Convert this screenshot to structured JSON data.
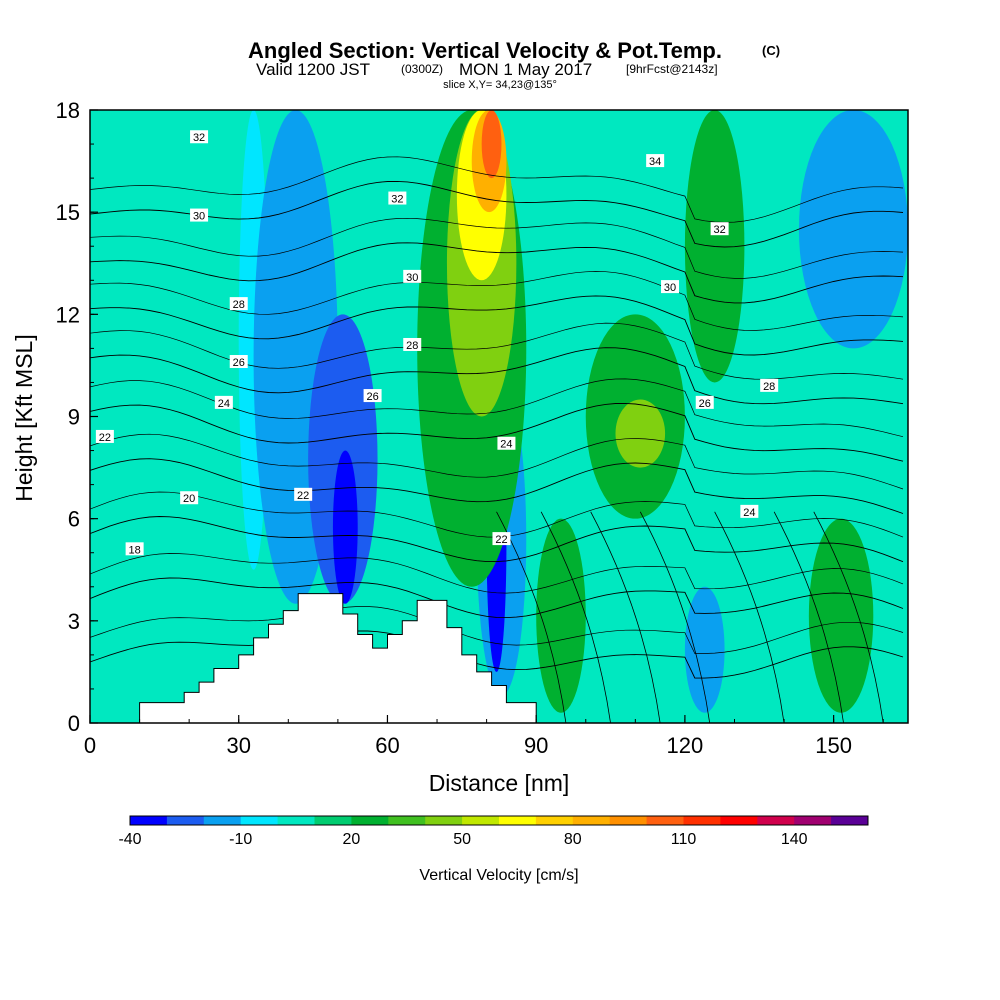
{
  "chart_data": {
    "type": "heatmap",
    "title": "Angled Section: Vertical Velocity & Pot.Temp.",
    "title_tag": "(C)",
    "subtitle_valid": "Valid 1200 JST",
    "subtitle_utc": "(0300Z)",
    "subtitle_date": "MON 1 May 2017",
    "subtitle_fcst": "[9hrFcst@2143z]",
    "slice_text": "slice X,Y= 34,23@135°",
    "xlabel": "Distance [nm]",
    "ylabel": "Height [Kft MSL]",
    "xlim": [
      0,
      165
    ],
    "ylim": [
      0,
      18
    ],
    "x_ticks": [
      0,
      30,
      60,
      90,
      120,
      150
    ],
    "y_ticks": [
      0,
      3,
      6,
      9,
      12,
      15,
      18
    ],
    "colorbar": {
      "label": "Vertical Velocity [cm/s]",
      "min": -40,
      "step": 10,
      "tick_labels": [
        "-40",
        "-10",
        "20",
        "50",
        "80",
        "110",
        "140"
      ],
      "tick_values": [
        -40,
        -10,
        20,
        50,
        80,
        110,
        140
      ],
      "colors": [
        "#0000ff",
        "#1c5cf0",
        "#0aa0f0",
        "#00e6ff",
        "#00e8c0",
        "#00cc70",
        "#00b030",
        "#40c020",
        "#80d010",
        "#c0e800",
        "#ffff00",
        "#ffd000",
        "#ffb000",
        "#ff9000",
        "#ff6010",
        "#ff3000",
        "#ff0000",
        "#d0004c",
        "#a00070",
        "#5a0096"
      ]
    },
    "background_color": "#00e8c0",
    "terrain_color": "#ffffff",
    "terrain_profile": [
      [
        0,
        0
      ],
      [
        10,
        0
      ],
      [
        10,
        0.6
      ],
      [
        19,
        0.6
      ],
      [
        19,
        0.9
      ],
      [
        22,
        0.9
      ],
      [
        22,
        1.2
      ],
      [
        25,
        1.2
      ],
      [
        25,
        1.6
      ],
      [
        30,
        1.6
      ],
      [
        30,
        2
      ],
      [
        33,
        2
      ],
      [
        33,
        2.5
      ],
      [
        36,
        2.5
      ],
      [
        36,
        2.9
      ],
      [
        39,
        2.9
      ],
      [
        39,
        3.3
      ],
      [
        42,
        3.3
      ],
      [
        42,
        3.8
      ],
      [
        51,
        3.8
      ],
      [
        51,
        3.2
      ],
      [
        54,
        3.2
      ],
      [
        54,
        2.6
      ],
      [
        57,
        2.6
      ],
      [
        57,
        2.2
      ],
      [
        60,
        2.2
      ],
      [
        60,
        2.6
      ],
      [
        63,
        2.6
      ],
      [
        63,
        3.0
      ],
      [
        66,
        3.0
      ],
      [
        66,
        3.6
      ],
      [
        72,
        3.6
      ],
      [
        72,
        2.8
      ],
      [
        75,
        2.8
      ],
      [
        75,
        2.0
      ],
      [
        78,
        2.0
      ],
      [
        78,
        1.5
      ],
      [
        81,
        1.5
      ],
      [
        81,
        1.1
      ],
      [
        84,
        1.1
      ],
      [
        84,
        0.6
      ],
      [
        90,
        0.6
      ],
      [
        90,
        0
      ]
    ],
    "velocity_cells": [
      {
        "x": [
          30,
          36
        ],
        "y": [
          4.5,
          18
        ],
        "value": -10
      },
      {
        "x": [
          33,
          50
        ],
        "y": [
          3.5,
          18
        ],
        "value": -20
      },
      {
        "x": [
          44,
          58
        ],
        "y": [
          3.5,
          12
        ],
        "value": -30
      },
      {
        "x": [
          49,
          54
        ],
        "y": [
          3.5,
          8
        ],
        "value": -40
      },
      {
        "x": [
          78,
          88
        ],
        "y": [
          0.8,
          10
        ],
        "value": -20
      },
      {
        "x": [
          80,
          84
        ],
        "y": [
          1.5,
          9
        ],
        "value": -40
      },
      {
        "x": [
          143,
          165
        ],
        "y": [
          11,
          18
        ],
        "value": -20
      },
      {
        "x": [
          120,
          128
        ],
        "y": [
          0.3,
          4
        ],
        "value": -20
      },
      {
        "x": [
          66,
          88
        ],
        "y": [
          4,
          18
        ],
        "value": 20
      },
      {
        "x": [
          72,
          86
        ],
        "y": [
          9,
          18
        ],
        "value": 40
      },
      {
        "x": [
          74,
          84
        ],
        "y": [
          13,
          18
        ],
        "value": 60
      },
      {
        "x": [
          77,
          84
        ],
        "y": [
          15,
          18
        ],
        "value": 80
      },
      {
        "x": [
          79,
          83
        ],
        "y": [
          16,
          18
        ],
        "value": 100
      },
      {
        "x": [
          100,
          120
        ],
        "y": [
          6,
          12
        ],
        "value": 20
      },
      {
        "x": [
          106,
          116
        ],
        "y": [
          7.5,
          9.5
        ],
        "value": 40
      },
      {
        "x": [
          120,
          132
        ],
        "y": [
          10,
          18
        ],
        "value": 20
      },
      {
        "x": [
          90,
          100
        ],
        "y": [
          0.3,
          6
        ],
        "value": 20
      },
      {
        "x": [
          145,
          158
        ],
        "y": [
          0.3,
          6
        ],
        "value": 20
      }
    ],
    "theta_levels": [
      {
        "value": 18,
        "label_x": 9,
        "label_y": 5.1
      },
      {
        "value": 20,
        "label_x": 20,
        "label_y": 6.6
      },
      {
        "value": 22,
        "label_x": 3,
        "label_y": 8.4
      },
      {
        "value": 24,
        "label_x": 27,
        "label_y": 9.4
      },
      {
        "value": 26,
        "label_x": 30,
        "label_y": 10.6
      },
      {
        "value": 28,
        "label_x": 30,
        "label_y": 12.3
      },
      {
        "value": 30,
        "label_x": 22,
        "label_y": 14.9
      },
      {
        "value": 32,
        "label_x": 22,
        "label_y": 17.2
      },
      {
        "value": 34,
        "label_x": 114,
        "label_y": 16.5
      }
    ],
    "isotherm_annotations": [
      {
        "text": "22",
        "x": 43,
        "y": 6.7
      },
      {
        "text": "22",
        "x": 83,
        "y": 5.4
      },
      {
        "text": "24",
        "x": 84,
        "y": 8.2
      },
      {
        "text": "24",
        "x": 133,
        "y": 6.2
      },
      {
        "text": "26",
        "x": 57,
        "y": 9.6
      },
      {
        "text": "26",
        "x": 124,
        "y": 9.4
      },
      {
        "text": "28",
        "x": 65,
        "y": 11.1
      },
      {
        "text": "28",
        "x": 137,
        "y": 9.9
      },
      {
        "text": "30",
        "x": 65,
        "y": 13.1
      },
      {
        "text": "30",
        "x": 117,
        "y": 12.8
      },
      {
        "text": "32",
        "x": 62,
        "y": 15.4
      },
      {
        "text": "32",
        "x": 127,
        "y": 14.5
      }
    ]
  }
}
